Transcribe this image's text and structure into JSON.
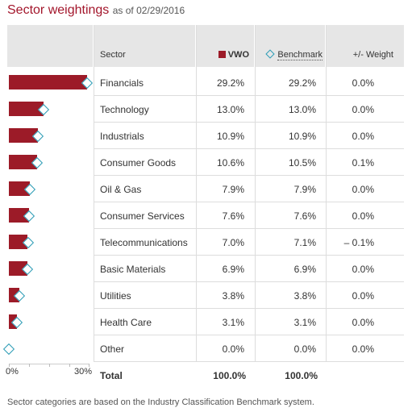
{
  "title": {
    "main": "Sector weightings",
    "as_of": "as of 02/29/2016"
  },
  "header": {
    "sector": "Sector",
    "fund": "VWO",
    "benchmark": "Benchmark",
    "diff": "+/- Weight"
  },
  "colors": {
    "fund_bar": "#9c1b28",
    "benchmark_marker": "#2a9bb5",
    "title": "#a3162b",
    "header_bg": "#e6e6e6"
  },
  "icons": {
    "fund": "square-swatch-icon",
    "benchmark": "diamond-outline-icon"
  },
  "rows": [
    {
      "sector": "Financials",
      "fund": "29.2%",
      "benchmark": "29.2%",
      "diff": "0.0%"
    },
    {
      "sector": "Technology",
      "fund": "13.0%",
      "benchmark": "13.0%",
      "diff": "0.0%"
    },
    {
      "sector": "Industrials",
      "fund": "10.9%",
      "benchmark": "10.9%",
      "diff": "0.0%"
    },
    {
      "sector": "Consumer Goods",
      "fund": "10.6%",
      "benchmark": "10.5%",
      "diff": "0.1%"
    },
    {
      "sector": "Oil & Gas",
      "fund": "7.9%",
      "benchmark": "7.9%",
      "diff": "0.0%"
    },
    {
      "sector": "Consumer Services",
      "fund": "7.6%",
      "benchmark": "7.6%",
      "diff": "0.0%"
    },
    {
      "sector": "Telecommunications",
      "fund": "7.0%",
      "benchmark": "7.1%",
      "diff": "– 0.1%"
    },
    {
      "sector": "Basic Materials",
      "fund": "6.9%",
      "benchmark": "6.9%",
      "diff": "0.0%"
    },
    {
      "sector": "Utilities",
      "fund": "3.8%",
      "benchmark": "3.8%",
      "diff": "0.0%"
    },
    {
      "sector": "Health Care",
      "fund": "3.1%",
      "benchmark": "3.1%",
      "diff": "0.0%"
    },
    {
      "sector": "Other",
      "fund": "0.0%",
      "benchmark": "0.0%",
      "diff": "0.0%"
    }
  ],
  "total": {
    "label": "Total",
    "fund": "100.0%",
    "benchmark": "100.0%"
  },
  "footnote": "Sector categories are based on the Industry Classification Benchmark system.",
  "chart_data": {
    "type": "bar",
    "orientation": "horizontal",
    "categories": [
      "Financials",
      "Technology",
      "Industrials",
      "Consumer Goods",
      "Oil & Gas",
      "Consumer Services",
      "Telecommunications",
      "Basic Materials",
      "Utilities",
      "Health Care",
      "Other"
    ],
    "series": [
      {
        "name": "VWO",
        "values": [
          29.2,
          13.0,
          10.9,
          10.6,
          7.9,
          7.6,
          7.0,
          6.9,
          3.8,
          3.1,
          0.0
        ]
      },
      {
        "name": "Benchmark",
        "values": [
          29.2,
          13.0,
          10.9,
          10.5,
          7.9,
          7.6,
          7.1,
          6.9,
          3.8,
          3.1,
          0.0
        ]
      }
    ],
    "xlim": [
      0,
      30
    ],
    "ticks": [
      "0%",
      "30%"
    ],
    "grid": false
  }
}
